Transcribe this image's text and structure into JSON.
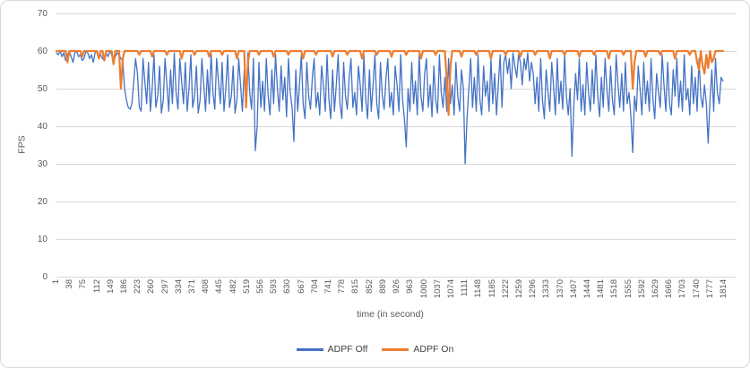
{
  "chart_data": {
    "type": "line",
    "title": "",
    "xlabel": "time (in second)",
    "ylabel": "FPS",
    "ylim": [
      0,
      70
    ],
    "y_ticks": [
      0,
      10,
      20,
      30,
      40,
      50,
      60,
      70
    ],
    "grid": "horizontal",
    "legend_position": "bottom",
    "x_range": [
      1,
      1814
    ],
    "x_tick_labels": [
      "1",
      "38",
      "75",
      "112",
      "149",
      "186",
      "223",
      "260",
      "297",
      "334",
      "371",
      "408",
      "445",
      "482",
      "519",
      "556",
      "593",
      "630",
      "667",
      "704",
      "741",
      "778",
      "815",
      "852",
      "889",
      "926",
      "963",
      "1000",
      "1037",
      "1074",
      "1111",
      "1148",
      "1185",
      "1222",
      "1259",
      "1296",
      "1333",
      "1370",
      "1407",
      "1444",
      "1481",
      "1518",
      "1555",
      "1592",
      "1629",
      "1666",
      "1703",
      "1740",
      "1777",
      "1814"
    ],
    "x": {
      "start": 1,
      "step": 5,
      "count": 363
    },
    "series": [
      {
        "name": "ADPF Off",
        "color": "#4472C4",
        "values": [
          59.5,
          59,
          60,
          58.5,
          59.5,
          57.5,
          59,
          60,
          58.5,
          57,
          59.5,
          60,
          58.5,
          59,
          57.5,
          58,
          60,
          59.5,
          58,
          59,
          57,
          59.5,
          60,
          58.5,
          59,
          58,
          57.5,
          59.5,
          58.5,
          60,
          59,
          57,
          58.5,
          59.5,
          59,
          58,
          57.5,
          50,
          47,
          45,
          44.5,
          46,
          52,
          58,
          54,
          45,
          44,
          58,
          52,
          46,
          57,
          44,
          50,
          59,
          45,
          48,
          56,
          43.5,
          47,
          58,
          51,
          44,
          55,
          46,
          59.5,
          49,
          44.5,
          58,
          52,
          46,
          57,
          44,
          50,
          59,
          45,
          48,
          56,
          43.5,
          47,
          58,
          51,
          44,
          55,
          46,
          59.5,
          49,
          44.5,
          58,
          52,
          46,
          57,
          44,
          50,
          59,
          45,
          48,
          56,
          43.5,
          47,
          58,
          51,
          44,
          55,
          46,
          59.5,
          49,
          44.5,
          58,
          33.5,
          40,
          57,
          45,
          52,
          44,
          58,
          48,
          43,
          55,
          46,
          59,
          50,
          44,
          56,
          47,
          53,
          42.5,
          58,
          49,
          45,
          36,
          55,
          44,
          51,
          59,
          46,
          42,
          57,
          48,
          44.5,
          53,
          58,
          45,
          49,
          43,
          56,
          51,
          44,
          59,
          47,
          42,
          55,
          44,
          51,
          59,
          46,
          42,
          57,
          48,
          44.5,
          53,
          58,
          45,
          49,
          43,
          56,
          51,
          44,
          59,
          47,
          42,
          55,
          44,
          51,
          59,
          46,
          42,
          57,
          48,
          44.5,
          53,
          58,
          45,
          49,
          43,
          56,
          51,
          44,
          59,
          47,
          42,
          34.5,
          50,
          44,
          57,
          46,
          52,
          43,
          59,
          48,
          44,
          54,
          58,
          45,
          51,
          42.5,
          56,
          47,
          43.5,
          59,
          49,
          45,
          53,
          44,
          58,
          46,
          51,
          43,
          57,
          48,
          44,
          55,
          50,
          30,
          42,
          50,
          58,
          45,
          53,
          44,
          59,
          47,
          43,
          56,
          48,
          52,
          44,
          58,
          46,
          54,
          43,
          51,
          59,
          45,
          57,
          59,
          54,
          58,
          50,
          59.5,
          56,
          53,
          59,
          57,
          51,
          58,
          55,
          59.5,
          52,
          57,
          54,
          46,
          53,
          44,
          58,
          47,
          42,
          55,
          49,
          44,
          57,
          51,
          43,
          58,
          46,
          52,
          44.5,
          59,
          48,
          43,
          50,
          32,
          45,
          54,
          47,
          58,
          44,
          51,
          43,
          57,
          49,
          44,
          55,
          46,
          59,
          48,
          42.5,
          53,
          45,
          58,
          50,
          44,
          56,
          47,
          43,
          59,
          51,
          45,
          54,
          44,
          57,
          46,
          49,
          43,
          33,
          48,
          44,
          56,
          50,
          43,
          57,
          46,
          52,
          44,
          58,
          47,
          42,
          54,
          49,
          45,
          59,
          51,
          44,
          57,
          46,
          43,
          55,
          48,
          58,
          45,
          52,
          44,
          59,
          47,
          50,
          43,
          56,
          46,
          53,
          44,
          58,
          48,
          45,
          51,
          46,
          35.5,
          47,
          55,
          44,
          58,
          49,
          46,
          53,
          52
        ]
      },
      {
        "name": "ADPF On",
        "color": "#ED7D31",
        "values": [
          60,
          60,
          60,
          60,
          60,
          60,
          57,
          60,
          60,
          60,
          60,
          60,
          60,
          60,
          58.5,
          60,
          60,
          60,
          60,
          60,
          60,
          60,
          60,
          58,
          60,
          60,
          57.5,
          60,
          60,
          60,
          60,
          56.5,
          60,
          60,
          60,
          50,
          58,
          60,
          60,
          60,
          60,
          60,
          60,
          60,
          60,
          59,
          60,
          60,
          60,
          60,
          60,
          60,
          58.5,
          60,
          60,
          60,
          60,
          60,
          60,
          60,
          59,
          60,
          60,
          60,
          60,
          60,
          60,
          60,
          58,
          60,
          60,
          60,
          60,
          60,
          60,
          59,
          60,
          60,
          60,
          60,
          60,
          60,
          60,
          58.5,
          60,
          60,
          60,
          60,
          60,
          60,
          59,
          60,
          60,
          60,
          60,
          60,
          60,
          60,
          58,
          60,
          60,
          60,
          60,
          45,
          57,
          60,
          60,
          60,
          60,
          60,
          59,
          60,
          60,
          60,
          60,
          60,
          60,
          60,
          58.5,
          60,
          60,
          60,
          60,
          60,
          60,
          60,
          59,
          60,
          60,
          60,
          60,
          60,
          60,
          60,
          58,
          60,
          60,
          60,
          60,
          60,
          60,
          59,
          60,
          60,
          60,
          60,
          60,
          60,
          60,
          60,
          58.5,
          60,
          60,
          60,
          60,
          60,
          60,
          60,
          59,
          60,
          60,
          60,
          60,
          60,
          60,
          60,
          58,
          60,
          60,
          60,
          60,
          60,
          60,
          60,
          59,
          60,
          60,
          60,
          60,
          60,
          60,
          60,
          58.5,
          60,
          60,
          60,
          60,
          60,
          60,
          60,
          59,
          60,
          60,
          60,
          60,
          60,
          60,
          60,
          58,
          60,
          60,
          60,
          60,
          60,
          60,
          60,
          59,
          60,
          60,
          60,
          60,
          60,
          52,
          43,
          56,
          60,
          60,
          60,
          60,
          60,
          58.5,
          60,
          60,
          60,
          60,
          60,
          60,
          60,
          59,
          60,
          60,
          60,
          60,
          60,
          60,
          60,
          58,
          60,
          60,
          60,
          60,
          60,
          60,
          60,
          59,
          60,
          60,
          60,
          60,
          60,
          60,
          60,
          58.5,
          60,
          60,
          60,
          60,
          60,
          60,
          60,
          59,
          60,
          60,
          60,
          60,
          60,
          60,
          60,
          58,
          60,
          60,
          60,
          60,
          60,
          60,
          60,
          59,
          60,
          60,
          60,
          60,
          60,
          60,
          60,
          58.5,
          60,
          60,
          60,
          60,
          60,
          60,
          60,
          59,
          60,
          60,
          60,
          60,
          60,
          60,
          60,
          58,
          60,
          60,
          60,
          60,
          60,
          60,
          60,
          59,
          60,
          60,
          60,
          60,
          50,
          57,
          60,
          60,
          60,
          60,
          60,
          58.5,
          60,
          60,
          60,
          60,
          60,
          60,
          60,
          59,
          60,
          60,
          60,
          60,
          60,
          60,
          60,
          58,
          60,
          60,
          60,
          60,
          60,
          60,
          60,
          59,
          60,
          60,
          60,
          57,
          55,
          60,
          56,
          54,
          59,
          55.5,
          60,
          57,
          58,
          60,
          60,
          60,
          60,
          60
        ]
      }
    ]
  },
  "legend": {
    "items": [
      {
        "label": "ADPF Off",
        "color": "#4472C4"
      },
      {
        "label": "ADPF On",
        "color": "#ED7D31"
      }
    ]
  },
  "colors": {
    "grid": "#D9D9D9",
    "axis_text": "#595959",
    "frame_border": "#D8D8D8",
    "background": "#FFFFFF",
    "series_blue": "#4472C4",
    "series_orange": "#ED7D31"
  }
}
